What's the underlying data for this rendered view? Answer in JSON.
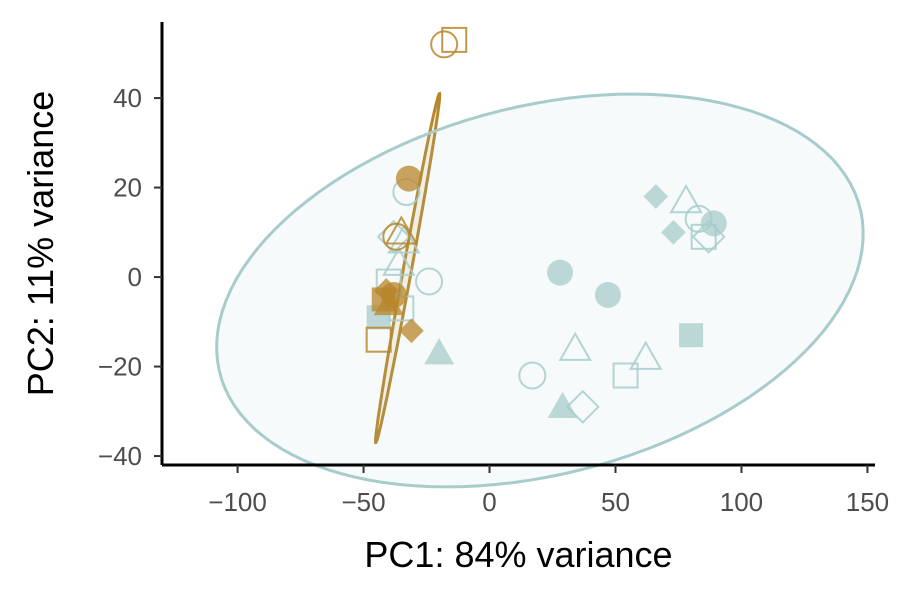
{
  "chart_data": {
    "type": "scatter",
    "xlabel": "PC1: 84% variance",
    "ylabel": "PC2: 11% variance",
    "xlim": [
      -130,
      153
    ],
    "ylim": [
      -42,
      57
    ],
    "x_ticks": [
      -100,
      -50,
      0,
      50,
      100,
      150
    ],
    "y_ticks": [
      -40,
      -20,
      0,
      20,
      40
    ],
    "grid": false,
    "legend": "none",
    "colors": {
      "group_a": "#b8862b",
      "group_b": "#a7cccb"
    },
    "series": [
      {
        "color": "#b8862b",
        "points": [
          {
            "x": -18,
            "y": 52,
            "shape": "circle-open"
          },
          {
            "x": -14,
            "y": 53,
            "shape": "square-open"
          },
          {
            "x": -32,
            "y": 22,
            "shape": "circle-filled"
          },
          {
            "x": -37,
            "y": 9,
            "shape": "circle-open"
          },
          {
            "x": -35,
            "y": 10,
            "shape": "triangle-open"
          },
          {
            "x": -41,
            "y": -3,
            "shape": "diamond-filled"
          },
          {
            "x": -42,
            "y": -5,
            "shape": "square-filled"
          },
          {
            "x": -40,
            "y": -6,
            "shape": "triangle-filled"
          },
          {
            "x": -38,
            "y": -4,
            "shape": "circle-filled"
          },
          {
            "x": -31,
            "y": -12,
            "shape": "diamond-filled"
          },
          {
            "x": -44,
            "y": -14,
            "shape": "square-open"
          }
        ],
        "ellipse": {
          "cx": -32.5,
          "cy": 2,
          "rx": 41,
          "ry": 2.6,
          "angle_deg": 72
        }
      },
      {
        "color": "#a7cccb",
        "points": [
          {
            "x": -33,
            "y": 19,
            "shape": "circle-open"
          },
          {
            "x": -38,
            "y": 9,
            "shape": "diamond-open"
          },
          {
            "x": -34,
            "y": 8,
            "shape": "triangle-open"
          },
          {
            "x": -36,
            "y": 3,
            "shape": "triangle-open"
          },
          {
            "x": -24,
            "y": -1,
            "shape": "circle-open"
          },
          {
            "x": -40,
            "y": -1,
            "shape": "square-open"
          },
          {
            "x": -35,
            "y": -7,
            "shape": "square-open"
          },
          {
            "x": -44,
            "y": -9,
            "shape": "square-filled"
          },
          {
            "x": -20,
            "y": -17,
            "shape": "triangle-filled"
          },
          {
            "x": 28,
            "y": 1,
            "shape": "circle-filled"
          },
          {
            "x": 47,
            "y": -4,
            "shape": "circle-filled"
          },
          {
            "x": 34,
            "y": -16,
            "shape": "triangle-open"
          },
          {
            "x": 17,
            "y": -22,
            "shape": "circle-open"
          },
          {
            "x": 29,
            "y": -29,
            "shape": "triangle-filled"
          },
          {
            "x": 37,
            "y": -29,
            "shape": "diamond-open"
          },
          {
            "x": 54,
            "y": -22,
            "shape": "square-open"
          },
          {
            "x": 62,
            "y": -18,
            "shape": "triangle-open"
          },
          {
            "x": 66,
            "y": 18,
            "shape": "diamond-filled"
          },
          {
            "x": 78,
            "y": 17,
            "shape": "triangle-open"
          },
          {
            "x": 83,
            "y": 13,
            "shape": "circle-open"
          },
          {
            "x": 89,
            "y": 12,
            "shape": "circle-filled"
          },
          {
            "x": 73,
            "y": 10,
            "shape": "diamond-filled"
          },
          {
            "x": 85,
            "y": 9,
            "shape": "square-open"
          },
          {
            "x": 87,
            "y": 9,
            "shape": "diamond-open"
          },
          {
            "x": 80,
            "y": -13,
            "shape": "square-filled"
          }
        ],
        "ellipse": {
          "cx": 20,
          "cy": -3,
          "rx": 129,
          "ry": 42,
          "angle_deg": 6
        }
      }
    ]
  }
}
